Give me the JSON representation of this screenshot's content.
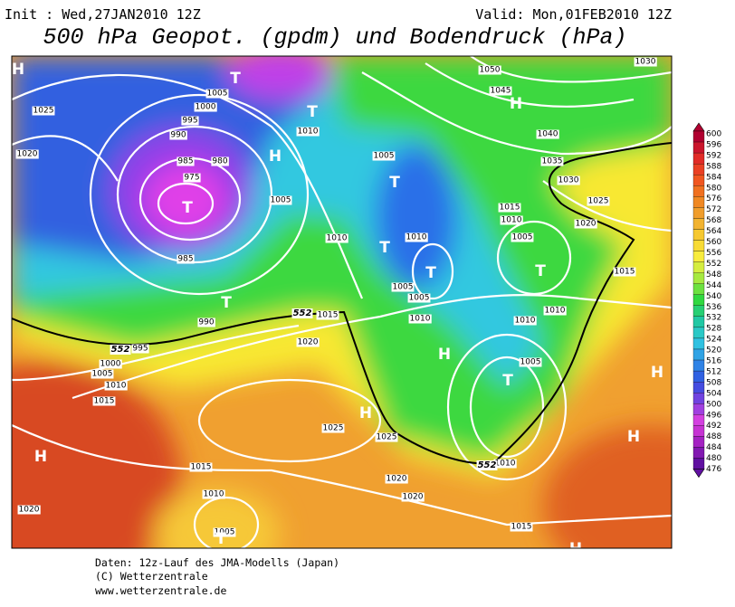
{
  "header": {
    "init": "Init : Wed,27JAN2010 12Z",
    "valid": "Valid: Mon,01FEB2010 12Z",
    "title": "500 hPa Geopot. (gpdm) und Bodendruck (hPa)"
  },
  "map": {
    "isobar_labels": [
      1025,
      1020,
      1005,
      1000,
      995,
      990,
      985,
      980,
      975,
      985,
      990,
      1010,
      1005,
      1010,
      1005,
      1010,
      1005,
      1005,
      1010,
      1015,
      995,
      1000,
      1005,
      1010,
      1015,
      1020,
      1025,
      1025,
      1020,
      1020,
      1015,
      1010,
      1005,
      1020,
      1010,
      1015,
      1010,
      1005,
      1010,
      1015,
      1010,
      1005,
      1015,
      1020,
      1025,
      1030,
      1035,
      1040,
      1045,
      1050,
      1030
    ],
    "contour_labels": [
      552,
      552,
      552
    ],
    "pressure_centers": [
      "H",
      "T",
      "T",
      "H",
      "T",
      "T",
      "T",
      "T",
      "T",
      "T",
      "H",
      "H",
      "T",
      "H",
      "H",
      "H",
      "H",
      "H",
      "T"
    ]
  },
  "colorbar": {
    "levels": [
      600,
      596,
      592,
      588,
      584,
      580,
      576,
      572,
      568,
      564,
      560,
      556,
      552,
      548,
      544,
      540,
      536,
      532,
      528,
      524,
      520,
      516,
      512,
      508,
      504,
      500,
      496,
      492,
      488,
      484,
      480,
      476
    ]
  },
  "footer": {
    "line1": "Daten: 12z-Lauf des JMA-Modells (Japan)",
    "line2": "(C) Wetterzentrale",
    "line3": "www.wetterzentrale.de"
  }
}
